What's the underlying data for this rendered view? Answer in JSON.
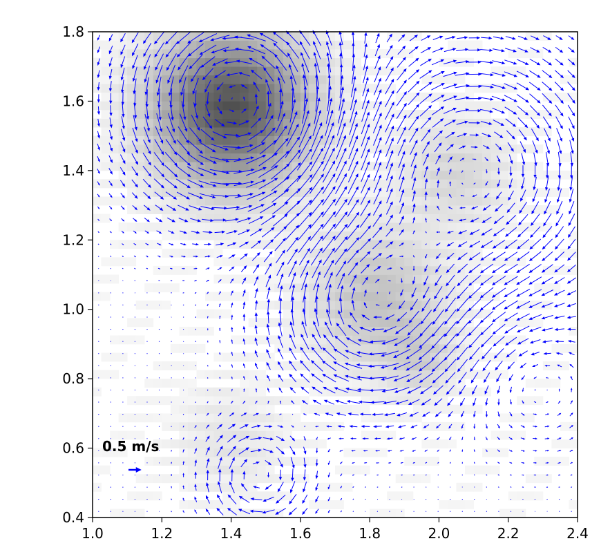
{
  "chart_data": {
    "type": "quiver",
    "title": "",
    "xlabel": "",
    "ylabel": "",
    "xlim": [
      1.0,
      2.4
    ],
    "ylim": [
      0.4,
      1.8
    ],
    "xticks": [
      "1.0",
      "1.2",
      "1.4",
      "1.6",
      "1.8",
      "2.0",
      "2.2",
      "2.4"
    ],
    "yticks": [
      "0.4",
      "0.6",
      "0.8",
      "1.0",
      "1.2",
      "1.4",
      "1.6",
      "1.8"
    ],
    "grid": false,
    "arrow_color": "#0000ff",
    "background_colormap": "greys",
    "vortices": [
      {
        "x": 1.42,
        "y": 1.6,
        "radius": 0.28,
        "strength": 0.55,
        "rotation": "counterclockwise"
      },
      {
        "x": 1.8,
        "y": 1.0,
        "radius": 0.25,
        "strength": 0.45,
        "rotation": "clockwise"
      },
      {
        "x": 1.48,
        "y": 0.52,
        "radius": 0.14,
        "strength": 0.35,
        "rotation": "clockwise"
      },
      {
        "x": 2.1,
        "y": 1.4,
        "radius": 0.35,
        "strength": 0.4,
        "rotation": "clockwise"
      },
      {
        "x": 2.28,
        "y": 0.8,
        "radius": 0.2,
        "strength": 0.15,
        "rotation": "counterclockwise"
      }
    ],
    "background_blobs": [
      {
        "x": 1.4,
        "y": 1.58,
        "radius": 0.22,
        "intensity": 0.65
      },
      {
        "x": 1.82,
        "y": 1.03,
        "radius": 0.2,
        "intensity": 0.22
      },
      {
        "x": 2.05,
        "y": 1.4,
        "radius": 0.16,
        "intensity": 0.14
      },
      {
        "x": 1.4,
        "y": 0.62,
        "radius": 0.16,
        "intensity": 0.08
      },
      {
        "x": 1.95,
        "y": 0.85,
        "radius": 0.1,
        "intensity": 0.12
      }
    ],
    "scale_arrow": {
      "label": "0.5 m/s",
      "value": 0.5,
      "units": "m/s"
    }
  }
}
